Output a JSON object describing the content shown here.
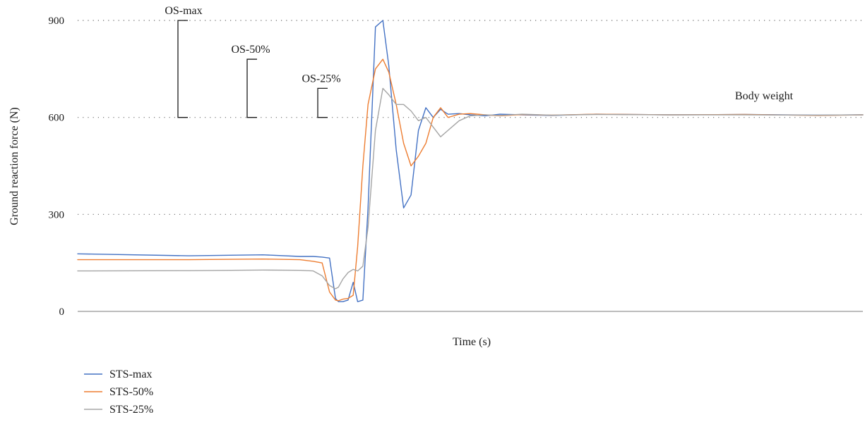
{
  "chart_data": {
    "type": "line",
    "title": "",
    "xlabel": "Time (s)",
    "ylabel": "Ground reaction force (N)",
    "ylim": [
      0,
      900
    ],
    "yticks": [
      0,
      300,
      600,
      900
    ],
    "grid": "horizontal dotted",
    "legend_position": "bottom-left",
    "annotations": [
      {
        "label": "OS-max",
        "from": 600,
        "to": 900
      },
      {
        "label": "OS-50%",
        "from": 600,
        "to": 780
      },
      {
        "label": "OS-25%",
        "from": 600,
        "to": 690
      },
      {
        "label": "Body weight",
        "value": 608
      }
    ],
    "x": [
      0,
      150,
      250,
      300,
      318,
      330,
      340,
      348,
      352,
      358,
      365,
      372,
      378,
      385,
      392,
      402,
      412,
      420,
      430,
      440,
      450,
      460,
      470,
      480,
      490,
      500,
      515,
      530,
      550,
      570,
      600,
      640,
      700,
      800,
      900,
      1000,
      1060
    ],
    "series": [
      {
        "name": "STS-max",
        "color": "#4472c4",
        "values": [
          178,
          172,
          175,
          170,
          170,
          168,
          165,
          40,
          30,
          30,
          35,
          90,
          30,
          35,
          320,
          880,
          900,
          760,
          500,
          320,
          360,
          560,
          630,
          600,
          625,
          610,
          612,
          608,
          605,
          610,
          608,
          606,
          610,
          608,
          609,
          607,
          608
        ]
      },
      {
        "name": "STS-50%",
        "color": "#ed7d31",
        "values": [
          160,
          160,
          162,
          160,
          155,
          150,
          60,
          35,
          33,
          38,
          40,
          50,
          200,
          450,
          640,
          750,
          780,
          740,
          640,
          520,
          450,
          480,
          520,
          600,
          630,
          600,
          610,
          612,
          608,
          605,
          609,
          607,
          610,
          608,
          609,
          606,
          608
        ]
      },
      {
        "name": "STS-25%",
        "color": "#a5a5a5",
        "values": [
          125,
          126,
          128,
          127,
          125,
          110,
          80,
          70,
          75,
          100,
          120,
          130,
          125,
          140,
          260,
          560,
          690,
          670,
          640,
          640,
          620,
          590,
          600,
          570,
          540,
          560,
          590,
          605,
          608,
          606,
          610,
          607,
          609,
          608,
          608,
          607,
          608
        ]
      }
    ]
  }
}
